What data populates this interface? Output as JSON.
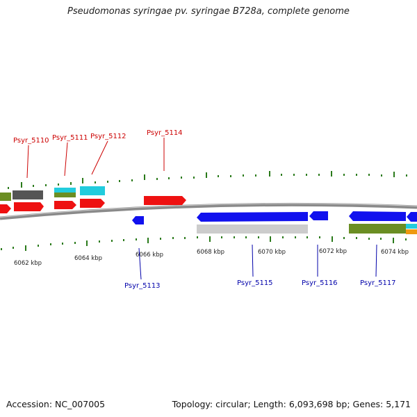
{
  "title": "Pseudomonas syringae pv. syringae B728a, complete genome",
  "footer": {
    "accession": "Accession: NC_007005",
    "topology": "Topology: circular; Length: 6,093,698 bp; Genes: 5,171"
  },
  "colors": {
    "forward": "#ee1111",
    "reverse": "#1111ee",
    "grey": "#cccccc",
    "darkgrey": "#555555",
    "olive": "#6b8e23",
    "cyan": "#22ccdd",
    "orange": "#ee9911",
    "tick": "#2a7a1a",
    "top_label": "#cc0000",
    "bottom_label": "#0000aa"
  },
  "kbp_labels": [
    "6062 kbp",
    "6064 kbp",
    "6066 kbp",
    "6068 kbp",
    "6070 kbp",
    "6072 kbp",
    "6074 kbp"
  ],
  "top_genes": [
    "Psyr_5110",
    "Psyr_5111",
    "Psyr_5112",
    "Psyr_5114"
  ],
  "bottom_genes": [
    "Psyr_5113",
    "Psyr_5115",
    "Psyr_5116",
    "Psyr_5117"
  ]
}
